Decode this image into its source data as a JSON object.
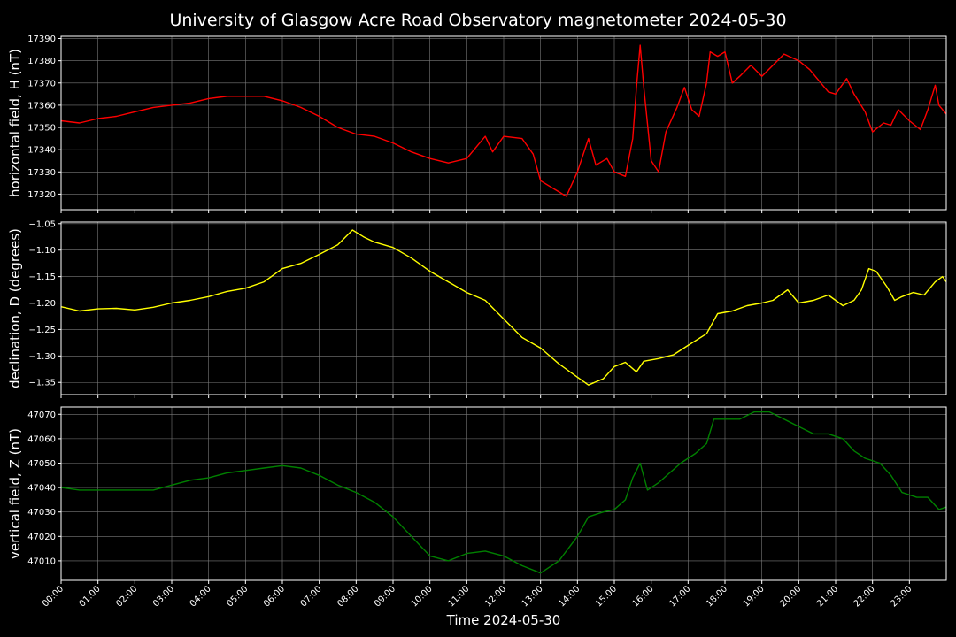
{
  "chart_data": {
    "type": "line",
    "title": "University of Glasgow Acre Road Observatory magnetometer 2024-05-30",
    "xlabel": "Time 2024-05-30",
    "x_ticks": [
      "00:00",
      "01:00",
      "02:00",
      "03:00",
      "04:00",
      "05:00",
      "06:00",
      "07:00",
      "08:00",
      "09:00",
      "10:00",
      "11:00",
      "12:00",
      "13:00",
      "14:00",
      "15:00",
      "16:00",
      "17:00",
      "18:00",
      "19:00",
      "20:00",
      "21:00",
      "22:00",
      "23:00"
    ],
    "xlim_hours": [
      0,
      24
    ],
    "grid": true,
    "panels": [
      {
        "name": "H",
        "ylabel": "horizontal field, H (nT)",
        "color": "#ff0000",
        "ylim": [
          17313,
          17391
        ],
        "yticks": [
          17320,
          17330,
          17340,
          17350,
          17360,
          17370,
          17380,
          17390
        ],
        "ytick_labels": [
          "17320",
          "17330",
          "17340",
          "17350",
          "17360",
          "17370",
          "17380",
          "17390"
        ],
        "points": [
          [
            0.0,
            17353
          ],
          [
            0.5,
            17352
          ],
          [
            1.0,
            17354
          ],
          [
            1.5,
            17355
          ],
          [
            2.0,
            17357
          ],
          [
            2.5,
            17359
          ],
          [
            3.0,
            17360
          ],
          [
            3.5,
            17361
          ],
          [
            4.0,
            17363
          ],
          [
            4.5,
            17364
          ],
          [
            5.0,
            17364
          ],
          [
            5.5,
            17364
          ],
          [
            6.0,
            17362
          ],
          [
            6.5,
            17359
          ],
          [
            7.0,
            17355
          ],
          [
            7.5,
            17350
          ],
          [
            8.0,
            17347
          ],
          [
            8.5,
            17346
          ],
          [
            9.0,
            17343
          ],
          [
            9.5,
            17339
          ],
          [
            10.0,
            17336
          ],
          [
            10.5,
            17334
          ],
          [
            11.0,
            17336
          ],
          [
            11.3,
            17342
          ],
          [
            11.5,
            17346
          ],
          [
            11.7,
            17339
          ],
          [
            12.0,
            17346
          ],
          [
            12.5,
            17345
          ],
          [
            12.8,
            17338
          ],
          [
            13.0,
            17326
          ],
          [
            13.4,
            17322
          ],
          [
            13.7,
            17319
          ],
          [
            14.0,
            17330
          ],
          [
            14.3,
            17345
          ],
          [
            14.5,
            17333
          ],
          [
            14.8,
            17336
          ],
          [
            15.0,
            17330
          ],
          [
            15.3,
            17328
          ],
          [
            15.5,
            17345
          ],
          [
            15.6,
            17368
          ],
          [
            15.7,
            17387
          ],
          [
            15.8,
            17368
          ],
          [
            16.0,
            17335
          ],
          [
            16.2,
            17330
          ],
          [
            16.4,
            17348
          ],
          [
            16.7,
            17359
          ],
          [
            16.9,
            17368
          ],
          [
            17.1,
            17358
          ],
          [
            17.3,
            17355
          ],
          [
            17.5,
            17370
          ],
          [
            17.6,
            17384
          ],
          [
            17.8,
            17382
          ],
          [
            18.0,
            17384
          ],
          [
            18.2,
            17370
          ],
          [
            18.4,
            17373
          ],
          [
            18.7,
            17378
          ],
          [
            19.0,
            17373
          ],
          [
            19.3,
            17378
          ],
          [
            19.6,
            17383
          ],
          [
            20.0,
            17380
          ],
          [
            20.3,
            17376
          ],
          [
            20.6,
            17370
          ],
          [
            20.8,
            17366
          ],
          [
            21.0,
            17365
          ],
          [
            21.3,
            17372
          ],
          [
            21.5,
            17365
          ],
          [
            21.8,
            17357
          ],
          [
            22.0,
            17348
          ],
          [
            22.3,
            17352
          ],
          [
            22.5,
            17351
          ],
          [
            22.7,
            17358
          ],
          [
            23.0,
            17353
          ],
          [
            23.3,
            17349
          ],
          [
            23.5,
            17358
          ],
          [
            23.7,
            17369
          ],
          [
            23.8,
            17360
          ],
          [
            24.0,
            17356
          ]
        ]
      },
      {
        "name": "D",
        "ylabel": "declination, D (degrees)",
        "color": "#ffff00",
        "ylim": [
          -1.373,
          -1.047
        ],
        "yticks": [
          -1.35,
          -1.3,
          -1.25,
          -1.2,
          -1.15,
          -1.1,
          -1.05
        ],
        "ytick_labels": [
          "−1.35",
          "−1.30",
          "−1.25",
          "−1.20",
          "−1.15",
          "−1.10",
          "−1.05"
        ],
        "points": [
          [
            0.0,
            -1.207
          ],
          [
            0.5,
            -1.215
          ],
          [
            1.0,
            -1.211
          ],
          [
            1.5,
            -1.21
          ],
          [
            2.0,
            -1.213
          ],
          [
            2.5,
            -1.208
          ],
          [
            3.0,
            -1.2
          ],
          [
            3.5,
            -1.195
          ],
          [
            4.0,
            -1.188
          ],
          [
            4.5,
            -1.178
          ],
          [
            5.0,
            -1.172
          ],
          [
            5.5,
            -1.16
          ],
          [
            6.0,
            -1.135
          ],
          [
            6.5,
            -1.125
          ],
          [
            7.0,
            -1.108
          ],
          [
            7.5,
            -1.09
          ],
          [
            7.9,
            -1.062
          ],
          [
            8.2,
            -1.075
          ],
          [
            8.5,
            -1.085
          ],
          [
            9.0,
            -1.095
          ],
          [
            9.5,
            -1.115
          ],
          [
            10.0,
            -1.14
          ],
          [
            10.5,
            -1.16
          ],
          [
            11.0,
            -1.18
          ],
          [
            11.5,
            -1.195
          ],
          [
            12.0,
            -1.23
          ],
          [
            12.5,
            -1.265
          ],
          [
            13.0,
            -1.285
          ],
          [
            13.5,
            -1.315
          ],
          [
            14.0,
            -1.34
          ],
          [
            14.3,
            -1.355
          ],
          [
            14.7,
            -1.343
          ],
          [
            15.0,
            -1.32
          ],
          [
            15.3,
            -1.312
          ],
          [
            15.6,
            -1.33
          ],
          [
            15.8,
            -1.31
          ],
          [
            16.2,
            -1.305
          ],
          [
            16.6,
            -1.298
          ],
          [
            17.0,
            -1.28
          ],
          [
            17.5,
            -1.258
          ],
          [
            17.8,
            -1.22
          ],
          [
            18.2,
            -1.215
          ],
          [
            18.6,
            -1.205
          ],
          [
            19.0,
            -1.2
          ],
          [
            19.3,
            -1.195
          ],
          [
            19.7,
            -1.175
          ],
          [
            20.0,
            -1.2
          ],
          [
            20.4,
            -1.195
          ],
          [
            20.8,
            -1.185
          ],
          [
            21.2,
            -1.205
          ],
          [
            21.5,
            -1.195
          ],
          [
            21.7,
            -1.175
          ],
          [
            21.9,
            -1.135
          ],
          [
            22.1,
            -1.14
          ],
          [
            22.4,
            -1.17
          ],
          [
            22.6,
            -1.195
          ],
          [
            22.8,
            -1.188
          ],
          [
            23.1,
            -1.18
          ],
          [
            23.4,
            -1.185
          ],
          [
            23.7,
            -1.16
          ],
          [
            23.9,
            -1.15
          ],
          [
            24.0,
            -1.16
          ]
        ]
      },
      {
        "name": "Z",
        "ylabel": "vertical field, Z (nT)",
        "color": "#008000",
        "ylim": [
          47002,
          47073
        ],
        "yticks": [
          47010,
          47020,
          47030,
          47040,
          47050,
          47060,
          47070
        ],
        "ytick_labels": [
          "47010",
          "47020",
          "47030",
          "47040",
          "47050",
          "47060",
          "47070"
        ],
        "points": [
          [
            0.0,
            47040
          ],
          [
            0.5,
            47039
          ],
          [
            1.0,
            47039
          ],
          [
            1.5,
            47039
          ],
          [
            2.0,
            47039
          ],
          [
            2.5,
            47039
          ],
          [
            3.0,
            47041
          ],
          [
            3.5,
            47043
          ],
          [
            4.0,
            47044
          ],
          [
            4.5,
            47046
          ],
          [
            5.0,
            47047
          ],
          [
            5.5,
            47048
          ],
          [
            6.0,
            47049
          ],
          [
            6.5,
            47048
          ],
          [
            7.0,
            47045
          ],
          [
            7.5,
            47041
          ],
          [
            8.0,
            47038
          ],
          [
            8.5,
            47034
          ],
          [
            9.0,
            47028
          ],
          [
            9.5,
            47020
          ],
          [
            10.0,
            47012
          ],
          [
            10.5,
            47010
          ],
          [
            11.0,
            47013
          ],
          [
            11.5,
            47014
          ],
          [
            12.0,
            47012
          ],
          [
            12.5,
            47008
          ],
          [
            13.0,
            47005
          ],
          [
            13.5,
            47010
          ],
          [
            14.0,
            47020
          ],
          [
            14.3,
            47028
          ],
          [
            14.7,
            47030
          ],
          [
            15.0,
            47031
          ],
          [
            15.3,
            47035
          ],
          [
            15.5,
            47044
          ],
          [
            15.7,
            47050
          ],
          [
            15.9,
            47039
          ],
          [
            16.2,
            47042
          ],
          [
            16.5,
            47046
          ],
          [
            16.8,
            47050
          ],
          [
            17.2,
            47054
          ],
          [
            17.5,
            47058
          ],
          [
            17.7,
            47068
          ],
          [
            18.0,
            47068
          ],
          [
            18.4,
            47068
          ],
          [
            18.8,
            47071
          ],
          [
            19.2,
            47071
          ],
          [
            19.6,
            47068
          ],
          [
            20.0,
            47065
          ],
          [
            20.4,
            47062
          ],
          [
            20.8,
            47062
          ],
          [
            21.2,
            47060
          ],
          [
            21.5,
            47055
          ],
          [
            21.8,
            47052
          ],
          [
            22.2,
            47050
          ],
          [
            22.5,
            47045
          ],
          [
            22.8,
            47038
          ],
          [
            23.2,
            47036
          ],
          [
            23.5,
            47036
          ],
          [
            23.8,
            47031
          ],
          [
            24.0,
            47032
          ]
        ]
      }
    ]
  }
}
